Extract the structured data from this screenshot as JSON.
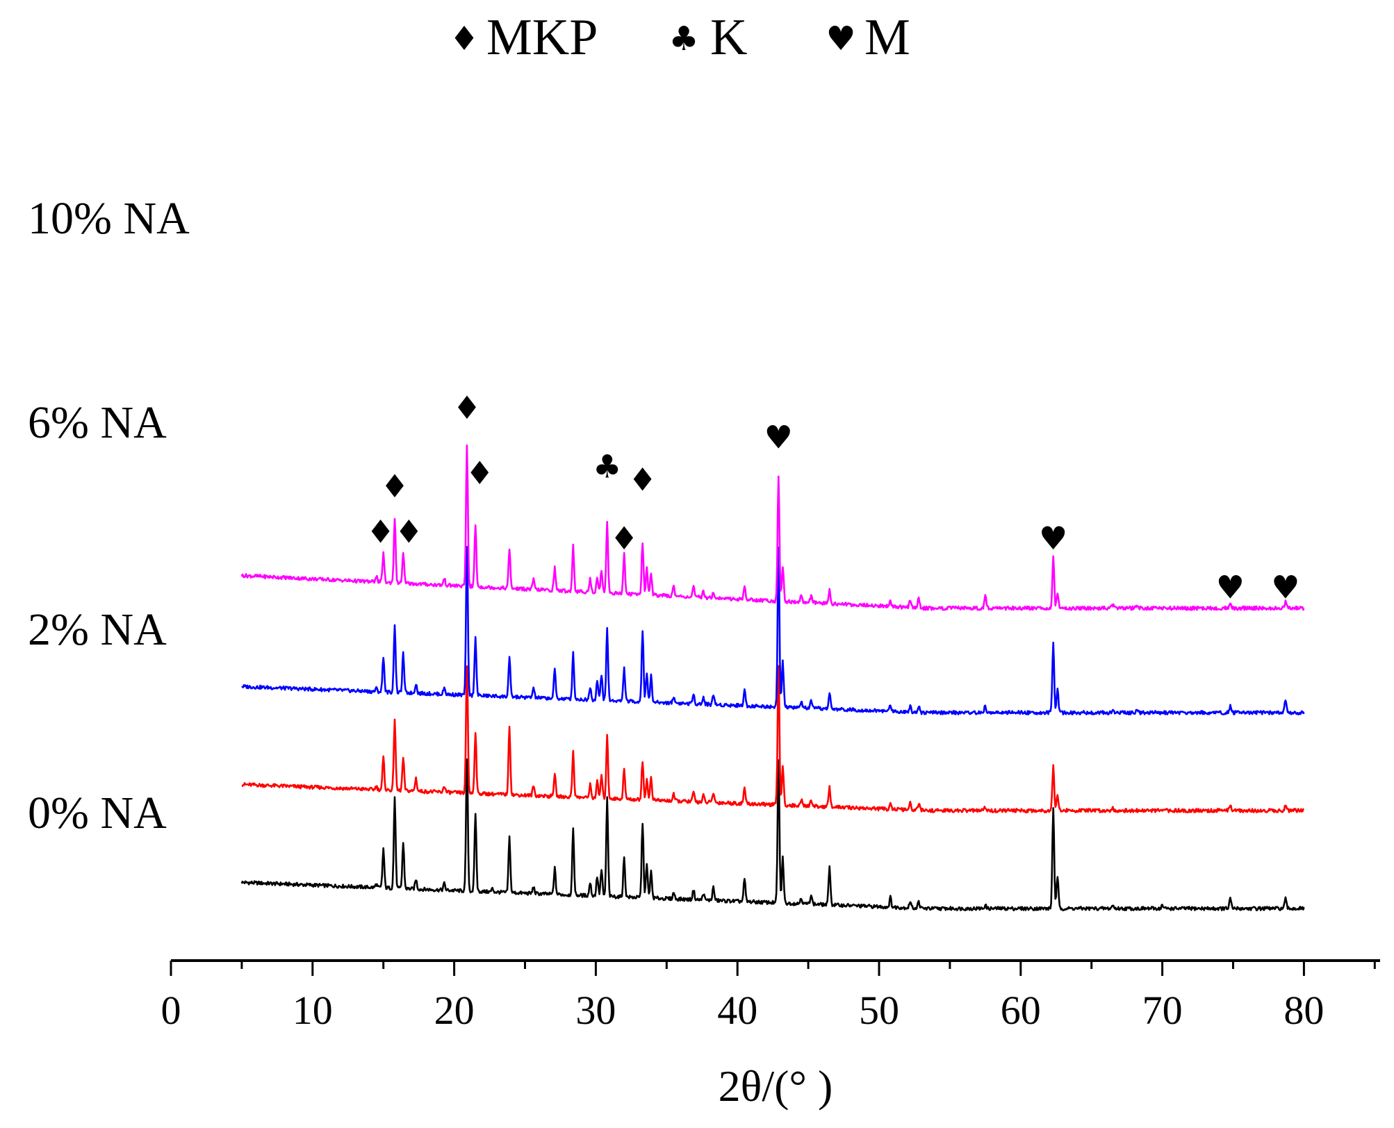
{
  "chart_data": {
    "type": "line",
    "title": "",
    "xlabel": "2θ/(° )",
    "ylabel": "",
    "xlim": [
      0,
      85
    ],
    "xticks": [
      "0",
      "10",
      "20",
      "30",
      "40",
      "50",
      "60",
      "70",
      "80"
    ],
    "x_range": [
      5,
      80
    ],
    "legend": {
      "placement": "top",
      "items": [
        {
          "symbol": "♦",
          "label": "MKP",
          "symbol_name": "diamond-icon"
        },
        {
          "symbol": "♣",
          "label": "K",
          "symbol_name": "club-icon"
        },
        {
          "symbol": "♥",
          "label": "M",
          "symbol_name": "heart-icon"
        }
      ]
    },
    "series": [
      {
        "name": "0% NA",
        "label": "0% NA",
        "color": "#000000",
        "offset": 0,
        "start_level": 8,
        "end_level": 0,
        "peaks": [
          [
            14.5,
            1
          ],
          [
            15.0,
            12
          ],
          [
            15.8,
            28
          ],
          [
            16.4,
            14
          ],
          [
            17.3,
            3
          ],
          [
            19.3,
            2
          ],
          [
            20.9,
            40
          ],
          [
            21.5,
            24
          ],
          [
            22.7,
            1
          ],
          [
            23.9,
            17
          ],
          [
            25.6,
            2
          ],
          [
            27.1,
            8
          ],
          [
            28.4,
            20
          ],
          [
            29.6,
            4
          ],
          [
            30.1,
            6
          ],
          [
            30.4,
            8
          ],
          [
            30.8,
            30
          ],
          [
            32.0,
            12
          ],
          [
            33.3,
            23
          ],
          [
            33.6,
            10
          ],
          [
            33.9,
            8
          ],
          [
            35.5,
            2
          ],
          [
            36.9,
            3
          ],
          [
            37.6,
            2
          ],
          [
            38.3,
            4
          ],
          [
            40.5,
            7
          ],
          [
            42.9,
            44
          ],
          [
            43.2,
            14
          ],
          [
            44.5,
            2
          ],
          [
            45.2,
            3
          ],
          [
            46.5,
            12
          ],
          [
            50.8,
            3
          ],
          [
            52.2,
            2
          ],
          [
            52.8,
            2
          ],
          [
            57.5,
            1
          ],
          [
            62.3,
            31
          ],
          [
            62.6,
            10
          ],
          [
            66.5,
            1
          ],
          [
            70.0,
            1
          ],
          [
            74.8,
            3
          ],
          [
            78.7,
            3
          ]
        ]
      },
      {
        "name": "2% NA",
        "label": "2% NA",
        "color": "#ff0000",
        "offset": 30,
        "start_level": 8,
        "end_level": 0,
        "peaks": [
          [
            14.5,
            1
          ],
          [
            15.0,
            10
          ],
          [
            15.8,
            22
          ],
          [
            16.4,
            10
          ],
          [
            17.3,
            4
          ],
          [
            19.3,
            2
          ],
          [
            20.9,
            39
          ],
          [
            21.5,
            19
          ],
          [
            23.9,
            21
          ],
          [
            25.6,
            3
          ],
          [
            27.1,
            7
          ],
          [
            28.4,
            14
          ],
          [
            29.6,
            4
          ],
          [
            30.1,
            5
          ],
          [
            30.4,
            7
          ],
          [
            30.8,
            19
          ],
          [
            32.0,
            9
          ],
          [
            33.3,
            12
          ],
          [
            33.6,
            6
          ],
          [
            33.9,
            7
          ],
          [
            35.5,
            2
          ],
          [
            36.9,
            3
          ],
          [
            37.6,
            2
          ],
          [
            38.3,
            3
          ],
          [
            40.5,
            5
          ],
          [
            42.9,
            43
          ],
          [
            43.2,
            12
          ],
          [
            44.5,
            2
          ],
          [
            45.2,
            2
          ],
          [
            46.5,
            6
          ],
          [
            50.8,
            2
          ],
          [
            52.2,
            2
          ],
          [
            52.8,
            2
          ],
          [
            57.5,
            1
          ],
          [
            62.3,
            14
          ],
          [
            62.6,
            5
          ],
          [
            66.5,
            1
          ],
          [
            74.8,
            2
          ],
          [
            78.7,
            2
          ]
        ]
      },
      {
        "name": "6% NA",
        "label": "6% NA",
        "color": "#0000ff",
        "offset": 60,
        "start_level": 8,
        "end_level": 0,
        "peaks": [
          [
            14.5,
            1
          ],
          [
            15.0,
            11
          ],
          [
            15.8,
            21
          ],
          [
            16.4,
            12
          ],
          [
            17.3,
            3
          ],
          [
            19.3,
            2
          ],
          [
            20.9,
            45
          ],
          [
            21.5,
            18
          ],
          [
            23.9,
            12
          ],
          [
            25.6,
            3
          ],
          [
            27.1,
            9
          ],
          [
            28.4,
            14
          ],
          [
            29.6,
            4
          ],
          [
            30.1,
            6
          ],
          [
            30.4,
            8
          ],
          [
            30.8,
            22
          ],
          [
            32.0,
            10
          ],
          [
            33.3,
            22
          ],
          [
            33.6,
            9
          ],
          [
            33.9,
            8
          ],
          [
            35.5,
            2
          ],
          [
            36.9,
            3
          ],
          [
            37.6,
            2
          ],
          [
            38.3,
            3
          ],
          [
            40.5,
            5
          ],
          [
            42.9,
            49
          ],
          [
            43.2,
            14
          ],
          [
            44.5,
            2
          ],
          [
            45.2,
            2
          ],
          [
            46.5,
            5
          ],
          [
            50.8,
            2
          ],
          [
            52.2,
            2
          ],
          [
            52.8,
            2
          ],
          [
            57.5,
            2
          ],
          [
            62.3,
            21
          ],
          [
            62.6,
            7
          ],
          [
            66.5,
            1
          ],
          [
            68.2,
            1
          ],
          [
            74.8,
            2
          ],
          [
            78.7,
            4
          ]
        ]
      },
      {
        "name": "10% NA",
        "label": "10% NA",
        "color": "#ff00ff",
        "offset": 92,
        "start_level": 10,
        "end_level": 0,
        "peaks": [
          [
            14.5,
            2
          ],
          [
            15.0,
            9
          ],
          [
            15.8,
            20
          ],
          [
            16.4,
            9
          ],
          [
            19.3,
            2
          ],
          [
            20.9,
            43
          ],
          [
            21.5,
            19
          ],
          [
            23.9,
            12
          ],
          [
            25.6,
            3
          ],
          [
            27.1,
            7
          ],
          [
            28.4,
            14
          ],
          [
            29.6,
            4
          ],
          [
            30.1,
            5
          ],
          [
            30.4,
            7
          ],
          [
            30.8,
            22
          ],
          [
            32.0,
            12
          ],
          [
            33.3,
            16
          ],
          [
            33.6,
            8
          ],
          [
            33.9,
            7
          ],
          [
            35.5,
            3
          ],
          [
            36.9,
            3
          ],
          [
            37.6,
            2
          ],
          [
            38.3,
            2
          ],
          [
            40.5,
            4
          ],
          [
            42.9,
            38
          ],
          [
            43.2,
            11
          ],
          [
            44.5,
            2
          ],
          [
            45.2,
            2
          ],
          [
            46.5,
            4
          ],
          [
            50.8,
            2
          ],
          [
            52.2,
            2
          ],
          [
            52.8,
            3
          ],
          [
            57.5,
            4
          ],
          [
            62.3,
            16
          ],
          [
            62.6,
            5
          ],
          [
            66.5,
            1
          ],
          [
            68.2,
            1
          ],
          [
            74.8,
            2
          ],
          [
            78.7,
            2
          ]
        ]
      }
    ],
    "annotations": [
      {
        "symbol": "♦",
        "x": 14.8,
        "y": 112
      },
      {
        "symbol": "♦",
        "x": 15.8,
        "y": 126
      },
      {
        "symbol": "♦",
        "x": 16.8,
        "y": 112
      },
      {
        "symbol": "♦",
        "x": 20.9,
        "y": 150
      },
      {
        "symbol": "♦",
        "x": 21.8,
        "y": 130
      },
      {
        "symbol": "♣",
        "x": 30.8,
        "y": 132
      },
      {
        "symbol": "♦",
        "x": 32.0,
        "y": 110
      },
      {
        "symbol": "♦",
        "x": 33.3,
        "y": 128
      },
      {
        "symbol": "♥",
        "x": 42.9,
        "y": 141
      },
      {
        "symbol": "♥",
        "x": 62.3,
        "y": 110
      },
      {
        "symbol": "♥",
        "x": 74.8,
        "y": 95
      },
      {
        "symbol": "♥",
        "x": 78.7,
        "y": 95
      }
    ]
  }
}
